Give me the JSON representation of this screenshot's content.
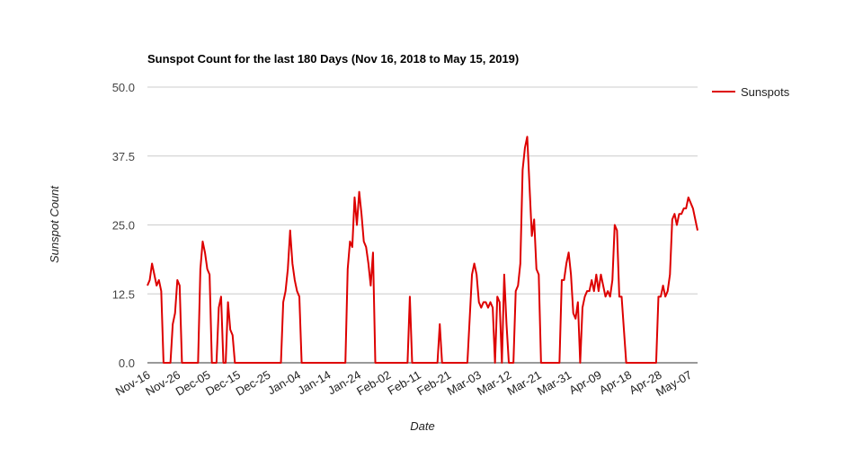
{
  "chart_data": {
    "type": "line",
    "title": "Sunspot Count for the last 180 Days (Nov 16, 2018 to May 15, 2019)",
    "xlabel": "Date",
    "ylabel": "Sunspot Count",
    "ylim": [
      0,
      50
    ],
    "yticks": [
      "0.0",
      "12.5",
      "25.0",
      "37.5",
      "50.0"
    ],
    "xticks": [
      "Nov-16",
      "Nov-26",
      "Dec-05",
      "Dec-15",
      "Dec-25",
      "Jan-04",
      "Jan-14",
      "Jan-24",
      "Feb-02",
      "Feb-11",
      "Feb-21",
      "Mar-03",
      "Mar-12",
      "Mar-21",
      "Mar-31",
      "Apr-09",
      "Apr-18",
      "Apr-28",
      "May-07"
    ],
    "grid": true,
    "legend": "right",
    "colors": {
      "line": "#dd0000"
    },
    "series": [
      {
        "name": "Sunspots",
        "values": [
          14,
          15,
          18,
          16,
          14,
          15,
          13,
          0,
          0,
          0,
          0,
          7,
          9,
          15,
          14,
          0,
          0,
          0,
          0,
          0,
          0,
          0,
          0,
          17,
          22,
          20,
          17,
          16,
          0,
          0,
          0,
          10,
          12,
          0,
          0,
          11,
          6,
          5,
          0,
          0,
          0,
          0,
          0,
          0,
          0,
          0,
          0,
          0,
          0,
          0,
          0,
          0,
          0,
          0,
          0,
          0,
          0,
          0,
          0,
          11,
          13,
          17,
          24,
          18,
          15,
          13,
          12,
          0,
          0,
          0,
          0,
          0,
          0,
          0,
          0,
          0,
          0,
          0,
          0,
          0,
          0,
          0,
          0,
          0,
          0,
          0,
          0,
          17,
          22,
          21,
          30,
          25,
          31,
          27,
          22,
          21,
          18,
          14,
          20,
          0,
          0,
          0,
          0,
          0,
          0,
          0,
          0,
          0,
          0,
          0,
          0,
          0,
          0,
          0,
          12,
          0,
          0,
          0,
          0,
          0,
          0,
          0,
          0,
          0,
          0,
          0,
          0,
          7,
          0,
          0,
          0,
          0,
          0,
          0,
          0,
          0,
          0,
          0,
          0,
          0,
          8,
          16,
          18,
          16,
          11,
          10,
          11,
          11,
          10,
          11,
          10,
          0,
          12,
          11,
          0,
          16,
          7,
          0,
          0,
          0,
          13,
          14,
          18,
          35,
          39,
          41,
          32,
          23,
          26,
          17,
          16,
          0,
          0,
          0,
          0,
          0,
          0,
          0,
          0,
          0,
          15,
          15,
          18,
          20,
          16,
          9,
          8,
          11,
          0,
          10,
          12,
          13,
          13,
          15,
          13,
          16,
          13,
          16,
          14,
          12,
          13,
          12,
          15,
          25,
          24,
          12,
          12,
          6,
          0,
          0,
          0,
          0,
          0,
          0,
          0,
          0,
          0,
          0,
          0,
          0,
          0,
          0,
          12,
          12,
          14,
          12,
          13,
          16,
          26,
          27,
          25,
          27,
          27,
          28,
          28,
          30,
          29,
          28,
          26,
          24
        ]
      }
    ]
  }
}
